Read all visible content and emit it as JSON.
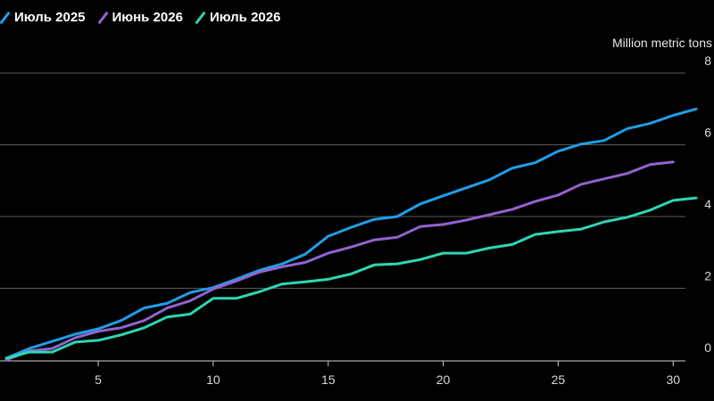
{
  "chart_data": {
    "type": "line",
    "title": "",
    "xlabel": "",
    "ylabel": "Million metric tons",
    "xlim": [
      1,
      31
    ],
    "ylim": [
      0,
      8
    ],
    "x_ticks": [
      5,
      10,
      15,
      20,
      25,
      30
    ],
    "y_ticks": [
      0,
      2,
      4,
      6,
      8
    ],
    "grid": "horizontal",
    "legend": "top-left",
    "series": [
      {
        "name": "Июль 2025",
        "color": "#1f9ee8",
        "x": [
          1,
          2,
          3,
          4,
          5,
          6,
          7,
          8,
          9,
          10,
          11,
          12,
          13,
          14,
          15,
          16,
          17,
          18,
          19,
          20,
          21,
          22,
          23,
          24,
          25,
          26,
          27,
          28,
          29,
          30,
          31
        ],
        "values": [
          0.05,
          0.32,
          0.52,
          0.72,
          0.87,
          1.1,
          1.45,
          1.58,
          1.88,
          2.02,
          2.25,
          2.5,
          2.68,
          2.95,
          3.45,
          3.7,
          3.92,
          4.0,
          4.35,
          4.58,
          4.8,
          5.02,
          5.35,
          5.5,
          5.82,
          6.02,
          6.12,
          6.45,
          6.6,
          6.82,
          7.0
        ]
      },
      {
        "name": "Июнь 2026",
        "color": "#9163d0",
        "x": [
          1,
          2,
          3,
          4,
          5,
          6,
          7,
          8,
          9,
          10,
          11,
          12,
          13,
          14,
          15,
          16,
          17,
          18,
          19,
          20,
          21,
          22,
          23,
          24,
          25,
          26,
          27,
          28,
          29,
          30
        ],
        "values": [
          0.0,
          0.25,
          0.32,
          0.62,
          0.8,
          0.9,
          1.1,
          1.45,
          1.65,
          1.98,
          2.2,
          2.45,
          2.6,
          2.72,
          2.98,
          3.15,
          3.35,
          3.42,
          3.72,
          3.78,
          3.9,
          4.05,
          4.2,
          4.42,
          4.6,
          4.9,
          5.05,
          5.2,
          5.45,
          5.52
        ]
      },
      {
        "name": "Июль 2026",
        "color": "#2ed6b2",
        "x": [
          1,
          2,
          3,
          4,
          5,
          6,
          7,
          8,
          9,
          10,
          11,
          12,
          13,
          14,
          15,
          16,
          17,
          18,
          19,
          20,
          21,
          22,
          23,
          24,
          25,
          26,
          27,
          28,
          29,
          30,
          31
        ],
        "values": [
          0.05,
          0.22,
          0.22,
          0.5,
          0.55,
          0.7,
          0.9,
          1.2,
          1.28,
          1.72,
          1.72,
          1.9,
          2.12,
          2.18,
          2.25,
          2.4,
          2.65,
          2.68,
          2.8,
          2.98,
          2.98,
          3.12,
          3.22,
          3.5,
          3.58,
          3.65,
          3.85,
          3.98,
          4.18,
          4.45,
          4.52
        ]
      }
    ]
  }
}
